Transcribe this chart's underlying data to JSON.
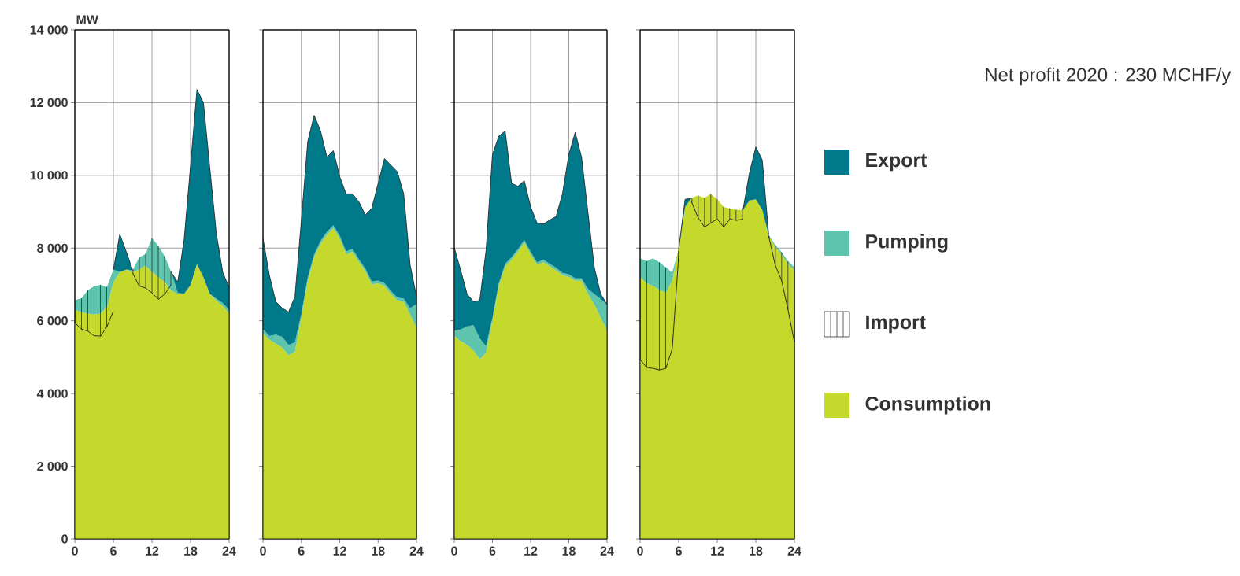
{
  "chart_data": [
    {
      "type": "area",
      "ylabel": "MW",
      "x": [
        0,
        1,
        2,
        3,
        4,
        5,
        6,
        7,
        8,
        9,
        10,
        11,
        12,
        13,
        14,
        15,
        16,
        17,
        18,
        19,
        20,
        21,
        22,
        23,
        24
      ],
      "xlim": [
        0,
        24
      ],
      "xticks": [
        0,
        6,
        12,
        18,
        24
      ],
      "ylim": [
        0,
        14000
      ],
      "yticks": [
        0,
        {
          "value": 2000,
          "label": "2 000"
        },
        {
          "value": 4000,
          "label": "4 000"
        },
        {
          "value": 6000,
          "label": "6 000"
        },
        {
          "value": 8000,
          "label": "8 000"
        },
        {
          "value": 10000,
          "label": "10 000"
        },
        {
          "value": 12000,
          "label": "12 000"
        },
        {
          "value": 14000,
          "label": "14 000"
        }
      ],
      "grid": true,
      "stacked": true,
      "legend": false,
      "series": [
        {
          "color": "#c5d92d",
          "values": [
            6300,
            6240,
            6200,
            6180,
            6200,
            6380,
            7060,
            7340,
            7410,
            7340,
            7410,
            7520,
            7340,
            7200,
            7060,
            6840,
            6740,
            6740,
            6990,
            7560,
            7200,
            6740,
            6560,
            6410,
            6200
          ]
        },
        {
          "color": "#5ec4ad",
          "values": [
            270,
            370,
            640,
            770,
            790,
            550,
            350,
            0,
            0,
            50,
            330,
            320,
            930,
            860,
            710,
            500,
            30,
            0,
            0,
            0,
            0,
            0,
            50,
            80,
            100
          ]
        },
        {
          "color": "#007a8a",
          "values": [
            0,
            0,
            0,
            0,
            0,
            0,
            0,
            1040,
            490,
            0,
            0,
            0,
            0,
            0,
            0,
            0,
            290,
            1490,
            3270,
            4800,
            4800,
            3460,
            1800,
            850,
            610
          ]
        },
        {
          "type": "line",
          "color": "#1a1a1a",
          "values": [
            5950,
            5770,
            5720,
            5590,
            5580,
            5840,
            6270,
            null,
            null,
            7310,
            6960,
            6900,
            6770,
            6590,
            6740,
            6990,
            null,
            null,
            null,
            null,
            null,
            null,
            null,
            null,
            null
          ]
        }
      ]
    },
    {
      "type": "area",
      "x": [
        0,
        1,
        2,
        3,
        4,
        5,
        6,
        7,
        8,
        9,
        10,
        11,
        12,
        13,
        14,
        15,
        16,
        17,
        18,
        19,
        20,
        21,
        22,
        23,
        24
      ],
      "xlim": [
        0,
        24
      ],
      "xticks": [
        0,
        6,
        12,
        18,
        24
      ],
      "ylim": [
        0,
        14000
      ],
      "yticks": [
        0,
        2000,
        4000,
        6000,
        8000,
        10000,
        12000,
        14000
      ],
      "grid": true,
      "stacked": true,
      "legend": false,
      "tick_labels": "x",
      "series": [
        {
          "color": "#c5d92d",
          "values": [
            5660,
            5480,
            5370,
            5270,
            5050,
            5160,
            6100,
            7110,
            7750,
            8120,
            8370,
            8550,
            8260,
            7830,
            7900,
            7610,
            7360,
            7000,
            7030,
            6960,
            6740,
            6560,
            6530,
            6170,
            5810
          ]
        },
        {
          "color": "#5ec4ad",
          "values": [
            110,
            100,
            250,
            290,
            290,
            250,
            100,
            80,
            80,
            80,
            80,
            80,
            80,
            80,
            80,
            80,
            80,
            80,
            80,
            80,
            80,
            80,
            80,
            180,
            650
          ]
        },
        {
          "color": "#007a8a",
          "values": [
            2490,
            1670,
            910,
            790,
            900,
            1260,
            2560,
            3740,
            3820,
            3020,
            2050,
            2050,
            1620,
            1580,
            1510,
            1580,
            1470,
            2010,
            2660,
            3420,
            3460,
            3460,
            2880,
            1190,
            210
          ]
        }
      ]
    },
    {
      "type": "area",
      "x": [
        0,
        1,
        2,
        3,
        4,
        5,
        6,
        7,
        8,
        9,
        10,
        11,
        12,
        13,
        14,
        15,
        16,
        17,
        18,
        19,
        20,
        21,
        22,
        23,
        24
      ],
      "xlim": [
        0,
        24
      ],
      "xticks": [
        0,
        6,
        12,
        18,
        24
      ],
      "ylim": [
        0,
        14000
      ],
      "yticks": [
        0,
        2000,
        4000,
        6000,
        8000,
        10000,
        12000,
        14000
      ],
      "grid": true,
      "stacked": true,
      "legend": false,
      "tick_labels": "x",
      "series": [
        {
          "color": "#c5d92d",
          "values": [
            5590,
            5440,
            5340,
            5190,
            4940,
            5120,
            6020,
            6960,
            7500,
            7680,
            7900,
            8150,
            7830,
            7540,
            7610,
            7500,
            7390,
            7250,
            7210,
            7100,
            7100,
            6740,
            6450,
            6090,
            5730
          ]
        },
        {
          "color": "#5ec4ad",
          "values": [
            140,
            320,
            510,
            690,
            580,
            180,
            70,
            70,
            70,
            70,
            70,
            70,
            70,
            70,
            70,
            70,
            70,
            70,
            70,
            70,
            70,
            140,
            290,
            510,
            720
          ]
        },
        {
          "color": "#007a8a",
          "values": [
            2280,
            1630,
            890,
            650,
            1040,
            2640,
            4480,
            4050,
            3650,
            2030,
            1730,
            1630,
            1230,
            1080,
            980,
            1200,
            1410,
            2170,
            3290,
            4010,
            3330,
            2100,
            730,
            140,
            0
          ]
        }
      ]
    },
    {
      "type": "area",
      "annotations": [
        "Net profit 2020 : 230 MCHF/y"
      ],
      "x": [
        0,
        1,
        2,
        3,
        4,
        5,
        6,
        7,
        8,
        9,
        10,
        11,
        12,
        13,
        14,
        15,
        16,
        17,
        18,
        19,
        20,
        21,
        22,
        23,
        24
      ],
      "xlim": [
        0,
        24
      ],
      "xticks": [
        0,
        6,
        12,
        18,
        24
      ],
      "ylim": [
        0,
        14000
      ],
      "yticks": [
        0,
        2000,
        4000,
        6000,
        8000,
        10000,
        12000,
        14000
      ],
      "grid": true,
      "stacked": true,
      "legend": "right",
      "tick_labels": "x",
      "series": [
        {
          "name": "Consumption",
          "color": "#c5d92d",
          "values": [
            7210,
            7030,
            6960,
            6850,
            6780,
            7110,
            7970,
            9130,
            9380,
            9450,
            9380,
            9490,
            9340,
            9130,
            9090,
            9050,
            9050,
            9310,
            9340,
            9050,
            8330,
            8040,
            7830,
            7570,
            7390
          ]
        },
        {
          "name": "Pumping",
          "color": "#5ec4ad",
          "values": [
            510,
            610,
            760,
            760,
            690,
            220,
            0,
            0,
            0,
            0,
            0,
            0,
            0,
            0,
            0,
            0,
            0,
            0,
            0,
            0,
            30,
            50,
            60,
            70,
            80
          ]
        },
        {
          "name": "Export",
          "color": "#007a8a",
          "values": [
            0,
            0,
            0,
            0,
            0,
            0,
            0,
            210,
            0,
            0,
            0,
            0,
            0,
            0,
            0,
            0,
            0,
            750,
            1440,
            1370,
            0,
            0,
            0,
            0,
            0
          ]
        },
        {
          "name": "Import",
          "type": "line",
          "color": "#1a1a1a",
          "values": [
            4940,
            4720,
            4690,
            4650,
            4690,
            5230,
            7790,
            null,
            9270,
            8840,
            8580,
            8690,
            8800,
            8580,
            8800,
            8760,
            8800,
            null,
            null,
            null,
            8330,
            7540,
            7110,
            6310,
            5410
          ]
        }
      ]
    }
  ]
}
